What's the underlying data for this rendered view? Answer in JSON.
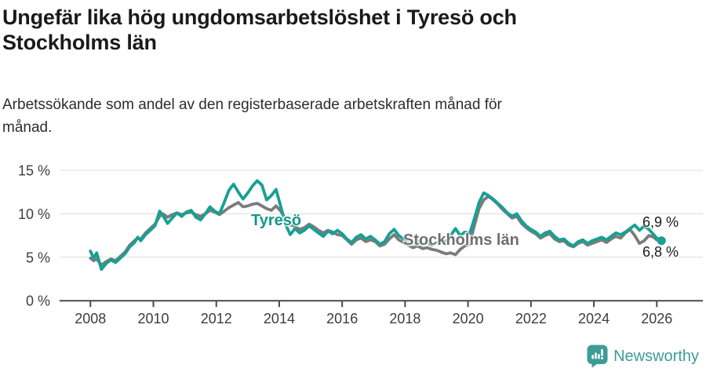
{
  "header": {
    "title": "Ungefär lika hög ungdomsarbetslöshet i Tyresö och\nStockholms län",
    "subtitle": "Arbetssökande som andel av den registerbaserade arbetskraften månad för\nmånad."
  },
  "annotations": {
    "tyreso_label": "Tyresö",
    "stockholm_label": "Stockholms län",
    "end_value_top": "6,9 %",
    "end_value_bottom": "6,8 %"
  },
  "footer": {
    "brand": "Newsworthy",
    "brand_color": "#3b9d96",
    "logo_icon": "bar-chart-speech-bubble-icon"
  },
  "colors": {
    "tyreso_line": "#17a093",
    "stockholm_line": "#7b7b7b",
    "gridline": "#dcdcdc",
    "axis": "#4a4a4a",
    "axis_text": "#3d3d3d"
  },
  "chart_data": {
    "type": "line",
    "title": "Ungefär lika hög ungdomsarbetslöshet i Tyresö och Stockholms län",
    "xlabel": "",
    "ylabel": "",
    "unit": "%",
    "grid": true,
    "xlim": [
      2007.0,
      2027.5
    ],
    "ylim": [
      0,
      16.5
    ],
    "x_ticks": [
      2008,
      2010,
      2012,
      2014,
      2016,
      2018,
      2020,
      2022,
      2024,
      2026
    ],
    "y_ticks": [
      {
        "value": 0,
        "label": "0 %"
      },
      {
        "value": 5,
        "label": "5 %"
      },
      {
        "value": 10,
        "label": "10 %"
      },
      {
        "value": 15,
        "label": "15 %"
      }
    ],
    "x": [
      2008.0,
      2008.1,
      2008.2,
      2008.35,
      2008.5,
      2008.65,
      2008.8,
      2008.95,
      2009.1,
      2009.25,
      2009.4,
      2009.5,
      2009.6,
      2009.75,
      2009.9,
      2010.05,
      2010.2,
      2010.3,
      2010.45,
      2010.6,
      2010.75,
      2010.9,
      2011.05,
      2011.2,
      2011.35,
      2011.5,
      2011.65,
      2011.8,
      2011.95,
      2012.1,
      2012.25,
      2012.4,
      2012.55,
      2012.7,
      2012.85,
      2013.0,
      2013.15,
      2013.3,
      2013.45,
      2013.6,
      2013.75,
      2013.9,
      2014.05,
      2014.2,
      2014.35,
      2014.5,
      2014.65,
      2014.8,
      2014.95,
      2015.1,
      2015.25,
      2015.4,
      2015.55,
      2015.7,
      2015.85,
      2016.0,
      2016.15,
      2016.3,
      2016.45,
      2016.6,
      2016.75,
      2016.9,
      2017.05,
      2017.2,
      2017.35,
      2017.5,
      2017.65,
      2017.8,
      2017.95,
      2018.1,
      2018.25,
      2018.4,
      2018.55,
      2018.7,
      2018.85,
      2019.0,
      2019.15,
      2019.3,
      2019.45,
      2019.6,
      2019.75,
      2019.9,
      2020.05,
      2020.2,
      2020.35,
      2020.5,
      2020.65,
      2020.8,
      2020.95,
      2021.1,
      2021.25,
      2021.4,
      2021.55,
      2021.7,
      2021.85,
      2022.0,
      2022.15,
      2022.3,
      2022.45,
      2022.6,
      2022.75,
      2022.9,
      2023.05,
      2023.2,
      2023.35,
      2023.5,
      2023.65,
      2023.8,
      2023.95,
      2024.1,
      2024.25,
      2024.4,
      2024.55,
      2024.7,
      2024.85,
      2025.0,
      2025.15,
      2025.3,
      2025.45,
      2025.6,
      2025.75,
      2025.9,
      2026.0,
      2026.15
    ],
    "series": [
      {
        "name": "Tyresö",
        "color": "#17a093",
        "line_width": 3.8,
        "end_value_label": "6,9 %",
        "values": [
          5.7,
          4.9,
          5.5,
          3.6,
          4.3,
          4.7,
          4.4,
          4.9,
          5.4,
          6.2,
          6.7,
          7.3,
          6.9,
          7.6,
          8.1,
          8.6,
          10.3,
          9.8,
          8.9,
          9.5,
          10.1,
          9.7,
          10.2,
          10.4,
          9.6,
          9.3,
          10.0,
          10.8,
          10.3,
          10.0,
          11.3,
          12.7,
          13.4,
          12.5,
          11.7,
          12.4,
          13.2,
          13.8,
          13.3,
          11.6,
          12.1,
          12.8,
          10.8,
          8.8,
          7.6,
          8.3,
          7.8,
          8.1,
          8.6,
          8.2,
          7.8,
          7.4,
          8.0,
          7.7,
          8.1,
          7.7,
          7.1,
          6.7,
          7.3,
          7.6,
          7.1,
          7.4,
          7.0,
          6.5,
          6.8,
          7.7,
          8.2,
          7.5,
          7.1,
          6.9,
          6.6,
          6.9,
          6.5,
          6.7,
          6.4,
          6.6,
          7.1,
          6.8,
          7.5,
          8.3,
          7.5,
          7.9,
          7.7,
          9.4,
          11.3,
          12.4,
          12.1,
          11.7,
          11.2,
          10.7,
          10.1,
          9.7,
          10.0,
          9.2,
          8.6,
          8.2,
          7.9,
          7.4,
          7.8,
          8.0,
          7.4,
          7.0,
          7.1,
          6.6,
          6.3,
          6.8,
          7.0,
          6.6,
          6.9,
          7.1,
          7.3,
          7.0,
          7.4,
          7.8,
          7.6,
          7.9,
          8.3,
          8.7,
          8.1,
          8.6,
          8.2,
          7.6,
          7.2,
          6.9
        ]
      },
      {
        "name": "Stockholms län",
        "color": "#7b7b7b",
        "line_width": 3.8,
        "end_value_label": "6,8 %",
        "values": [
          4.9,
          4.6,
          4.8,
          4.1,
          4.5,
          4.8,
          4.6,
          5.1,
          5.6,
          6.4,
          6.9,
          7.2,
          7.1,
          7.8,
          8.3,
          8.8,
          9.7,
          10.0,
          9.6,
          9.9,
          10.1,
          9.9,
          10.1,
          10.2,
          9.9,
          9.7,
          10.0,
          10.4,
          10.2,
          9.9,
          10.3,
          10.7,
          11.0,
          11.3,
          10.8,
          10.9,
          11.1,
          11.2,
          10.9,
          10.6,
          10.4,
          10.9,
          10.3,
          9.4,
          8.7,
          8.6,
          8.2,
          8.4,
          8.8,
          8.5,
          8.1,
          7.8,
          8.1,
          7.9,
          7.6,
          7.5,
          7.0,
          6.5,
          7.0,
          7.2,
          6.8,
          7.0,
          6.8,
          6.3,
          6.5,
          7.1,
          7.6,
          7.0,
          6.7,
          6.4,
          6.1,
          6.3,
          6.0,
          6.1,
          5.9,
          5.8,
          5.6,
          5.4,
          5.5,
          5.3,
          5.9,
          6.3,
          6.5,
          8.6,
          10.6,
          11.6,
          12.0,
          11.6,
          11.1,
          10.5,
          10.0,
          9.5,
          9.7,
          8.9,
          8.4,
          8.0,
          7.7,
          7.2,
          7.5,
          7.7,
          7.1,
          6.8,
          6.9,
          6.4,
          6.2,
          6.6,
          6.8,
          6.4,
          6.6,
          6.8,
          7.0,
          6.7,
          7.1,
          7.4,
          7.2,
          7.8,
          8.2,
          7.5,
          6.6,
          6.9,
          7.5,
          7.3,
          7.0,
          6.8
        ]
      }
    ],
    "legend_position": "inline-labels"
  }
}
